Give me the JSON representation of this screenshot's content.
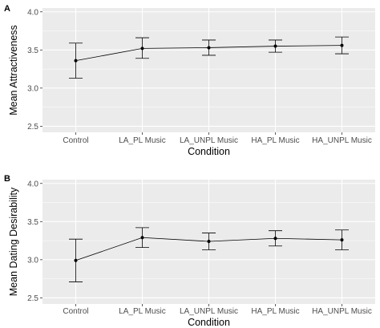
{
  "chart_data": [
    {
      "type": "line",
      "panel_label": "A",
      "categories": [
        "Control",
        "LA_PL Music",
        "LA_UNPL Music",
        "HA_PL Music",
        "HA_UNPL Music"
      ],
      "values": [
        3.36,
        3.52,
        3.53,
        3.55,
        3.56
      ],
      "error_low": [
        3.13,
        3.39,
        3.43,
        3.47,
        3.45
      ],
      "error_high": [
        3.59,
        3.66,
        3.63,
        3.63,
        3.67
      ],
      "xlabel": "Condition",
      "ylabel": "Mean Attractiveness",
      "ylim": [
        2.42,
        4.05
      ],
      "yticks": [
        "2.5",
        "3.0",
        "3.5",
        "4.0"
      ],
      "grid": true,
      "background": "#ebebeb"
    },
    {
      "type": "line",
      "panel_label": "B",
      "categories": [
        "Control",
        "LA_PL Music",
        "LA_UNPL Music",
        "HA_PL Music",
        "HA_UNPL Music"
      ],
      "values": [
        2.99,
        3.29,
        3.24,
        3.28,
        3.26
      ],
      "error_low": [
        2.71,
        3.16,
        3.13,
        3.18,
        3.13
      ],
      "error_high": [
        3.27,
        3.42,
        3.35,
        3.38,
        3.39
      ],
      "xlabel": "Condition",
      "ylabel": "Mean Dating Desirability",
      "ylim": [
        2.42,
        4.05
      ],
      "yticks": [
        "2.5",
        "3.0",
        "3.5",
        "4.0"
      ],
      "grid": true,
      "background": "#ebebeb"
    }
  ]
}
